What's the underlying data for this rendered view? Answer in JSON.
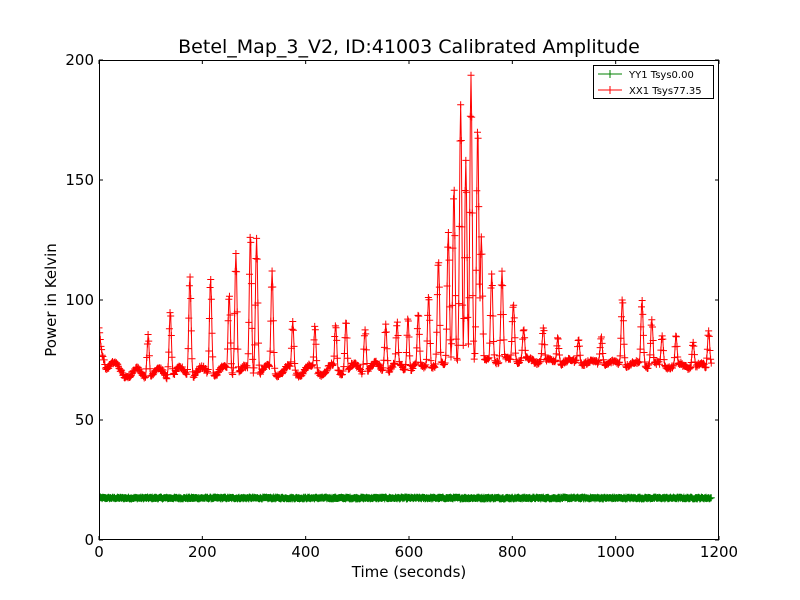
{
  "chart_data": {
    "type": "line",
    "title": "Betel_Map_3_V2, ID:41003 Calibrated Amplitude",
    "xlabel": "Time (seconds)",
    "ylabel": "Power in Kelvin",
    "xlim": [
      0,
      1200
    ],
    "ylim": [
      0,
      200
    ],
    "xticks": [
      0,
      200,
      400,
      600,
      800,
      1000,
      1200
    ],
    "yticks": [
      0,
      50,
      100,
      150,
      200
    ],
    "legend_position": "top-right",
    "grid": false,
    "marker": "+",
    "series": [
      {
        "name": "YY1 Tsys0.00",
        "color": "#008000",
        "x_range": [
          0,
          1185
        ],
        "baseline": 17.5,
        "noise": 0.4
      },
      {
        "name": "XX1 Tsys77.35",
        "color": "#ff0000",
        "x_range": [
          0,
          1185
        ],
        "osc_period_seconds": 42,
        "osc_start": 10,
        "trough_values": [
          [
            0,
            72
          ],
          [
            60,
            67
          ],
          [
            300,
            68
          ],
          [
            500,
            69
          ],
          [
            600,
            70
          ],
          [
            700,
            73
          ],
          [
            800,
            74
          ],
          [
            1200,
            71
          ]
        ],
        "start_peak": 89,
        "end_peak": 87,
        "spikes": [
          [
            95,
            85
          ],
          [
            138,
            95
          ],
          [
            176,
            110
          ],
          [
            216,
            109
          ],
          [
            252,
            103
          ],
          [
            265,
            119
          ],
          [
            293,
            127
          ],
          [
            305,
            126
          ],
          [
            335,
            112
          ],
          [
            375,
            91
          ],
          [
            418,
            89
          ],
          [
            458,
            90
          ],
          [
            478,
            91
          ],
          [
            515,
            88
          ],
          [
            555,
            90
          ],
          [
            577,
            91
          ],
          [
            598,
            92
          ],
          [
            618,
            94
          ],
          [
            638,
            102
          ],
          [
            657,
            117
          ],
          [
            676,
            128
          ],
          [
            687,
            147
          ],
          [
            700,
            182
          ],
          [
            710,
            158
          ],
          [
            720,
            194
          ],
          [
            733,
            173
          ],
          [
            740,
            127
          ],
          [
            760,
            111
          ],
          [
            780,
            112
          ],
          [
            802,
            99
          ],
          [
            822,
            88
          ],
          [
            860,
            89
          ],
          [
            888,
            84
          ],
          [
            928,
            84
          ],
          [
            972,
            85
          ],
          [
            1013,
            101
          ],
          [
            1051,
            100
          ],
          [
            1070,
            92
          ],
          [
            1090,
            85
          ],
          [
            1117,
            85
          ],
          [
            1150,
            82
          ],
          [
            1180,
            87
          ]
        ]
      }
    ]
  }
}
